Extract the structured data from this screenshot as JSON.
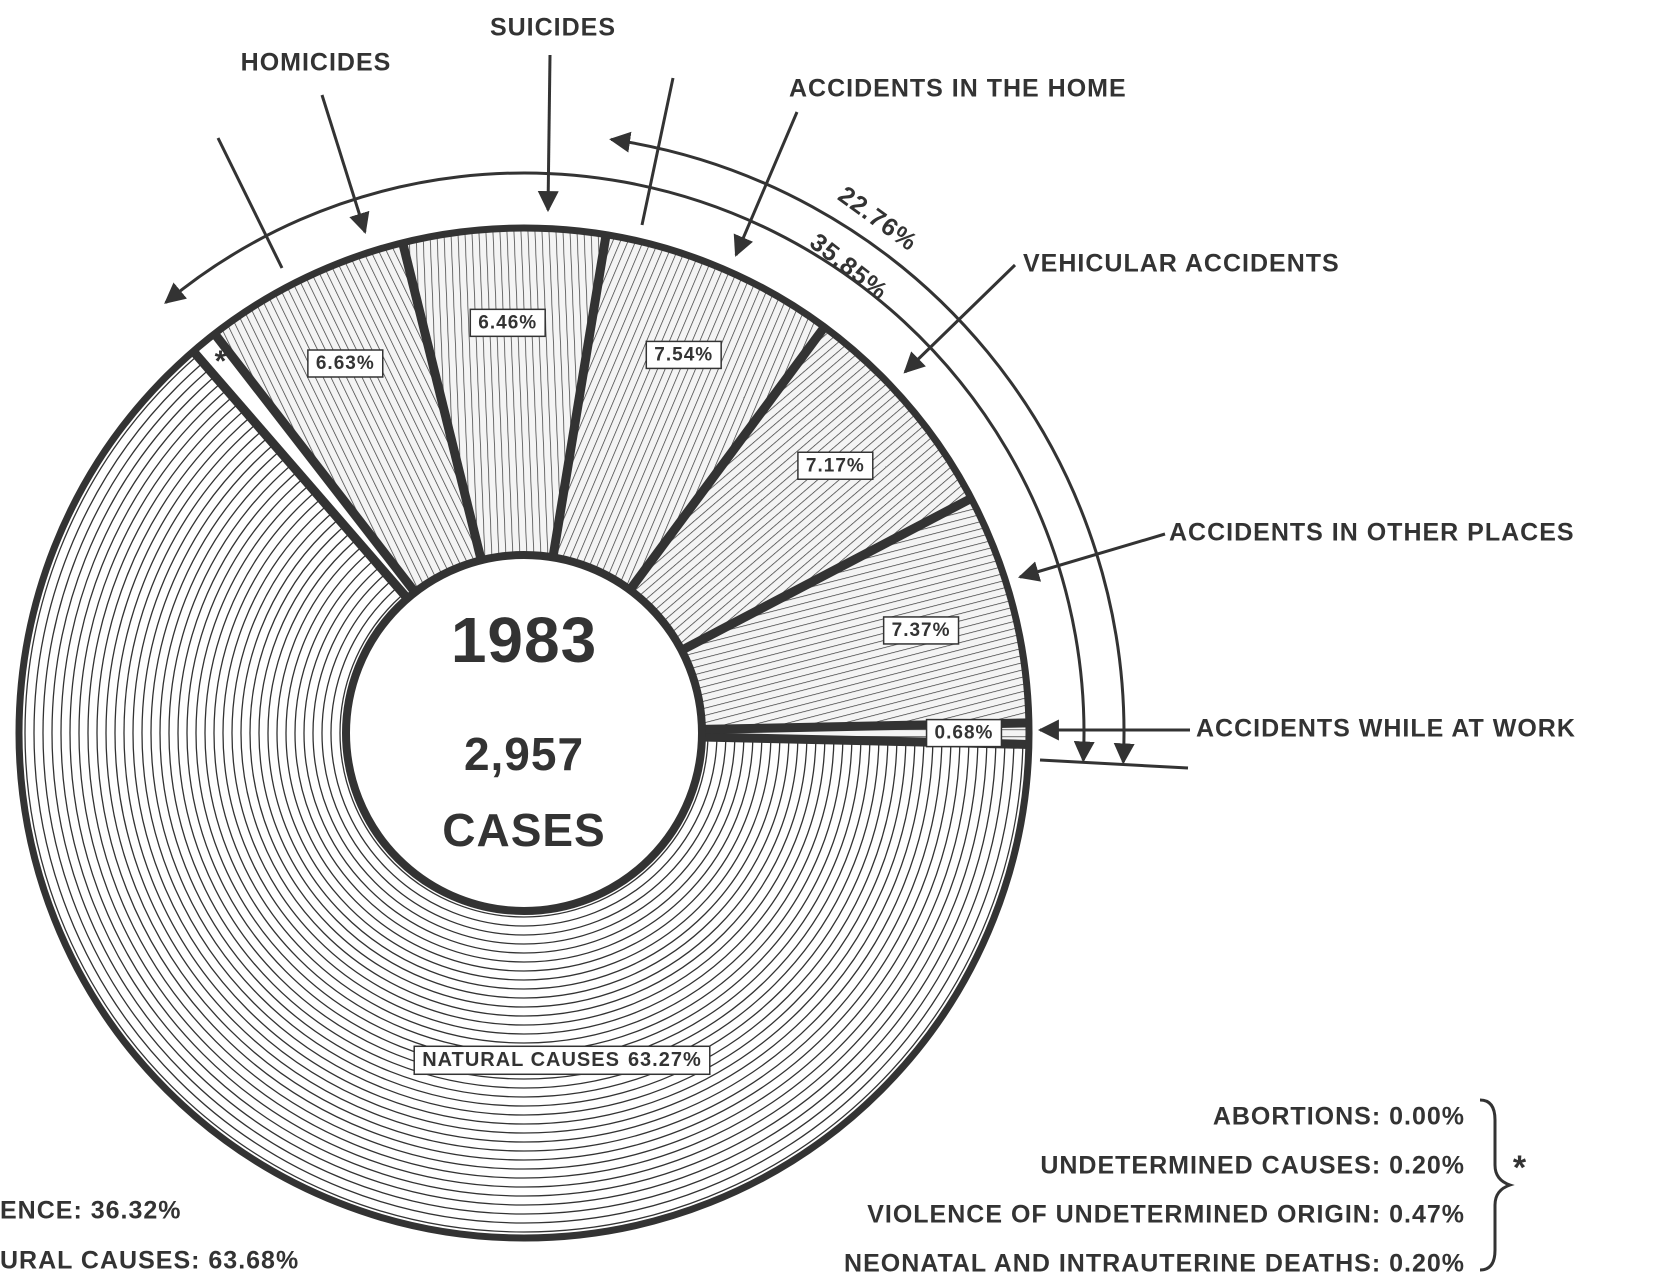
{
  "chart_data": {
    "type": "donut",
    "center_title": "1983",
    "center_count": "2,957",
    "center_unit": "CASES",
    "categories": [
      "NATURAL CAUSES",
      null,
      "HOMICIDES",
      "SUICIDES",
      "ACCIDENTS IN THE HOME",
      "VEHICULAR ACCIDENTS",
      "ACCIDENTS IN OTHER PLACES",
      "ACCIDENTS WHILE AT WORK"
    ],
    "values": [
      63.27,
      0.87,
      6.63,
      6.46,
      7.54,
      7.17,
      7.37,
      0.68
    ],
    "value_labels": [
      "63.27%",
      "*",
      "6.63%",
      "6.46%",
      "7.54%",
      "7.17%",
      "7.37%",
      "0.68%"
    ],
    "annotations": [
      "22.76%",
      "35.85%"
    ],
    "footnote_marker": "*",
    "footnotes": [
      "ABORTIONS: 0.00%",
      "UNDETERMINED CAUSES: 0.20%",
      "VIOLENCE OF UNDETERMINED ORIGIN: 0.47%",
      "NEONATAL AND INTRAUTERINE DEATHS: 0.20%"
    ],
    "totals": [
      "ENCE: 36.32%",
      "URAL CAUSES: 63.68%"
    ],
    "color": "#333333"
  }
}
